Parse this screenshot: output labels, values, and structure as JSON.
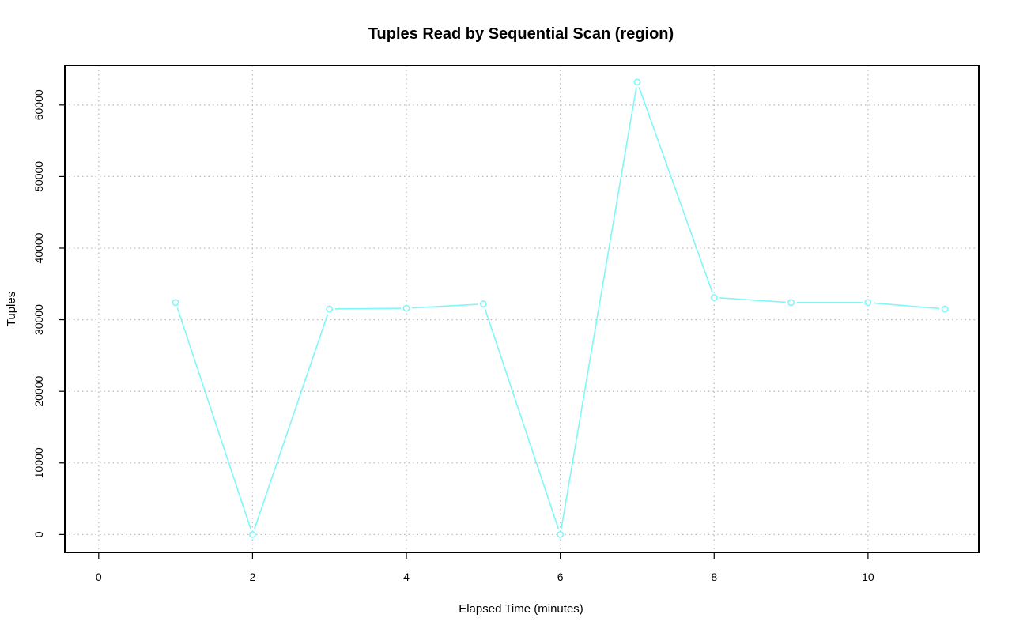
{
  "chart_data": {
    "type": "line",
    "title": "Tuples Read by Sequential Scan (region)",
    "xlabel": "Elapsed Time (minutes)",
    "ylabel": "Tuples",
    "xlim": [
      -0.44,
      11.44
    ],
    "ylim": [
      -2500,
      65500
    ],
    "xticks": [
      0,
      2,
      4,
      6,
      8,
      10
    ],
    "xtick_labels": [
      "0",
      "2",
      "4",
      "6",
      "8",
      "10"
    ],
    "yticks": [
      0,
      10000,
      20000,
      30000,
      40000,
      50000,
      60000
    ],
    "ytick_labels": [
      "0",
      "10000",
      "20000",
      "30000",
      "40000",
      "50000",
      "60000"
    ],
    "grid": true,
    "legend": "none",
    "series": [
      {
        "color": "#7ff7f7",
        "x": [
          1,
          2,
          3,
          4,
          5,
          6,
          7,
          8,
          9,
          10,
          11
        ],
        "values": [
          32400,
          0,
          31500,
          31600,
          32200,
          0,
          63200,
          33100,
          32400,
          32400,
          31500
        ]
      }
    ]
  }
}
